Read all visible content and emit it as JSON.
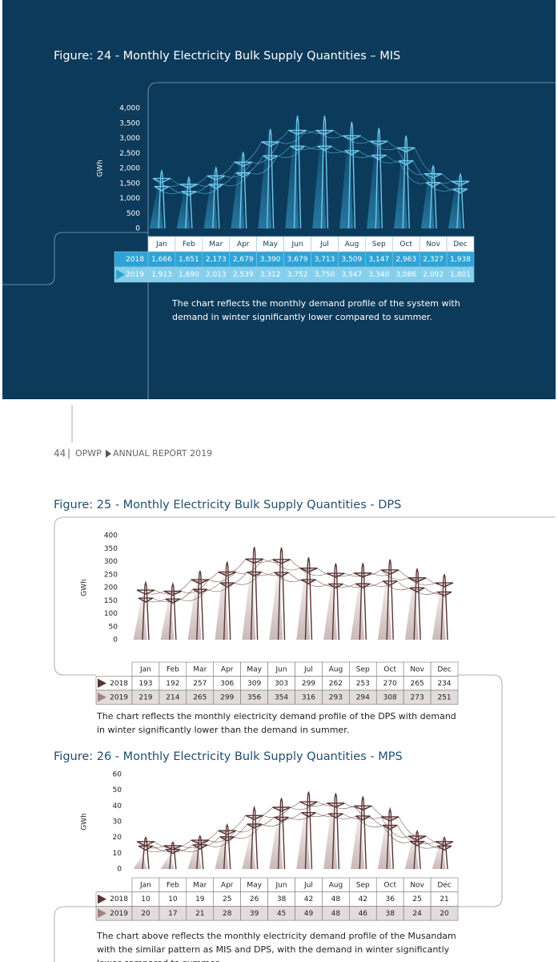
{
  "chart_data": [
    {
      "type": "pylon",
      "title": "Figure: 24 - Monthly Electricity Bulk Supply Quantities – MIS",
      "y_label": "GWh",
      "categories": [
        "Jan",
        "Feb",
        "Mar",
        "Apr",
        "May",
        "Jun",
        "Jul",
        "Aug",
        "Sep",
        "Oct",
        "Nov",
        "Dec"
      ],
      "series": [
        {
          "name": "2018",
          "color": "#2ea3d6",
          "values": [
            1666,
            1651,
            2173,
            2679,
            3390,
            3679,
            3713,
            3509,
            3147,
            2963,
            2327,
            1938
          ],
          "value_labels": [
            "1,666",
            "1,651",
            "2,173",
            "2,679",
            "3,390",
            "3,679",
            "3,713",
            "3,509",
            "3,147",
            "2,963",
            "2,327",
            "1,938"
          ]
        },
        {
          "name": "2019",
          "color": "#86d0ee",
          "values": [
            1913,
            1690,
            2013,
            2539,
            3312,
            3752,
            3750,
            3547,
            3340,
            3086,
            2092,
            1801
          ],
          "value_labels": [
            "1,913",
            "1,690",
            "2,013",
            "2,539",
            "3,312",
            "3,752",
            "3,750",
            "3,547",
            "3,340",
            "3,086",
            "2,092",
            "1,801"
          ]
        }
      ],
      "pylon_color": "#6cc8ee",
      "ylim": [
        0,
        4000
      ],
      "yticks": [
        0,
        500,
        {
          "value": 1000,
          "label": "1,000"
        },
        {
          "value": 1500,
          "label": "1,500"
        },
        {
          "value": 2000,
          "label": "2,000"
        },
        {
          "value": 2500,
          "label": "2,500"
        },
        {
          "value": 3000,
          "label": "3,000"
        },
        {
          "value": 3500,
          "label": "3,500"
        },
        {
          "value": 4000,
          "label": "4,000"
        }
      ],
      "caption": "The chart reflects the monthly demand profile of the system with demand in winter significantly lower compared to summer."
    },
    {
      "type": "pylon",
      "title": "Figure: 25 - Monthly Electricity Bulk Supply Quantities - DPS",
      "y_label": "GWh",
      "categories": [
        "Jan",
        "Feb",
        "Mar",
        "Apr",
        "May",
        "Jun",
        "Jul",
        "Aug",
        "Sep",
        "Oct",
        "Nov",
        "Dec"
      ],
      "series": [
        {
          "name": "2018",
          "color": "#ffffff",
          "values": [
            193,
            192,
            257,
            306,
            309,
            303,
            299,
            262,
            253,
            270,
            265,
            234
          ]
        },
        {
          "name": "2019",
          "color": "#e2dcdc",
          "values": [
            219,
            214,
            265,
            299,
            356,
            354,
            316,
            293,
            294,
            308,
            273,
            251
          ]
        }
      ],
      "pylon_color": "#5a3434",
      "ylim": [
        0,
        400
      ],
      "yticks": [
        0,
        50,
        100,
        150,
        200,
        250,
        300,
        350,
        400
      ],
      "caption": "The chart reflects the monthly electricity demand profile of the DPS with demand in winter significantly lower than the demand in summer."
    },
    {
      "type": "pylon",
      "title": "Figure: 26 - Monthly Electricity Bulk Supply Quantities - MPS",
      "y_label": "GWh",
      "categories": [
        "Jan",
        "Feb",
        "Mar",
        "Apr",
        "May",
        "Jun",
        "Jul",
        "Aug",
        "Sep",
        "Oct",
        "Nov",
        "Dec"
      ],
      "series": [
        {
          "name": "2018",
          "color": "#ffffff",
          "values": [
            10,
            10,
            19,
            25,
            26,
            38,
            42,
            48,
            42,
            36,
            25,
            21
          ]
        },
        {
          "name": "2019",
          "color": "#e2dcdc",
          "values": [
            20,
            17,
            21,
            28,
            39,
            45,
            49,
            48,
            46,
            38,
            24,
            20
          ]
        }
      ],
      "pylon_color": "#5a3434",
      "ylim": [
        0,
        60
      ],
      "yticks": [
        0,
        10,
        20,
        30,
        40,
        50,
        60
      ],
      "caption": "The chart above reflects the monthly electricity demand profile of the Musandam with the similar pattern as MIS and DPS, with the demand in winter significantly lower compared to summer."
    }
  ],
  "footer": {
    "page_number": "44",
    "publisher": "OPWP",
    "report": "ANNUAL REPORT 2019"
  }
}
